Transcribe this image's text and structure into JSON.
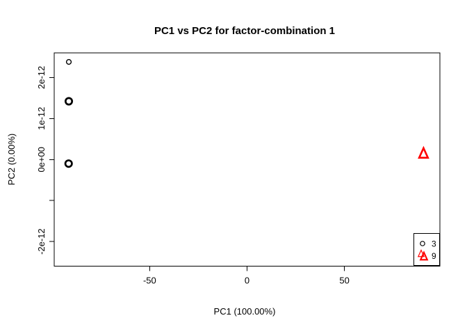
{
  "chart_data": {
    "type": "scatter",
    "title": "PC1 vs PC2 for factor-combination 1",
    "xlabel": "PC1 (100.00%)",
    "ylabel": "PC2 (0.00%)",
    "xlim": [
      -99,
      99
    ],
    "ylim": [
      -2.6e-12,
      2.6e-12
    ],
    "grid": false,
    "background": "#ffffff",
    "box_color": "#000000",
    "x_ticks": [
      {
        "value": -50,
        "label": "-50"
      },
      {
        "value": 0,
        "label": "0"
      },
      {
        "value": 50,
        "label": "50"
      }
    ],
    "y_ticks": [
      {
        "value": 2e-12,
        "label": "2e-12"
      },
      {
        "value": 1e-12,
        "label": "1e-12"
      },
      {
        "value": 0,
        "label": "0e+00"
      },
      {
        "value": -1e-12,
        "label": ""
      },
      {
        "value": -2e-12,
        "label": "-2e-12"
      }
    ],
    "legend_position": "bottomright",
    "series": [
      {
        "name": "3",
        "marker": "circle",
        "legend_symbol": "circle",
        "color": "#000000",
        "points": [
          {
            "x": -91.5,
            "y": 2.38e-12,
            "emphasis": "normal"
          },
          {
            "x": -91.5,
            "y": 1.42e-12,
            "emphasis": "bold"
          },
          {
            "x": -91.6,
            "y": -1e-13,
            "emphasis": "bold"
          }
        ]
      },
      {
        "name": "9",
        "marker": "triangle",
        "legend_symbol": "triangle-double",
        "color": "#ff0000",
        "points": [
          {
            "x": 90.6,
            "y": 1.4e-13,
            "emphasis": "bold"
          }
        ]
      }
    ]
  }
}
